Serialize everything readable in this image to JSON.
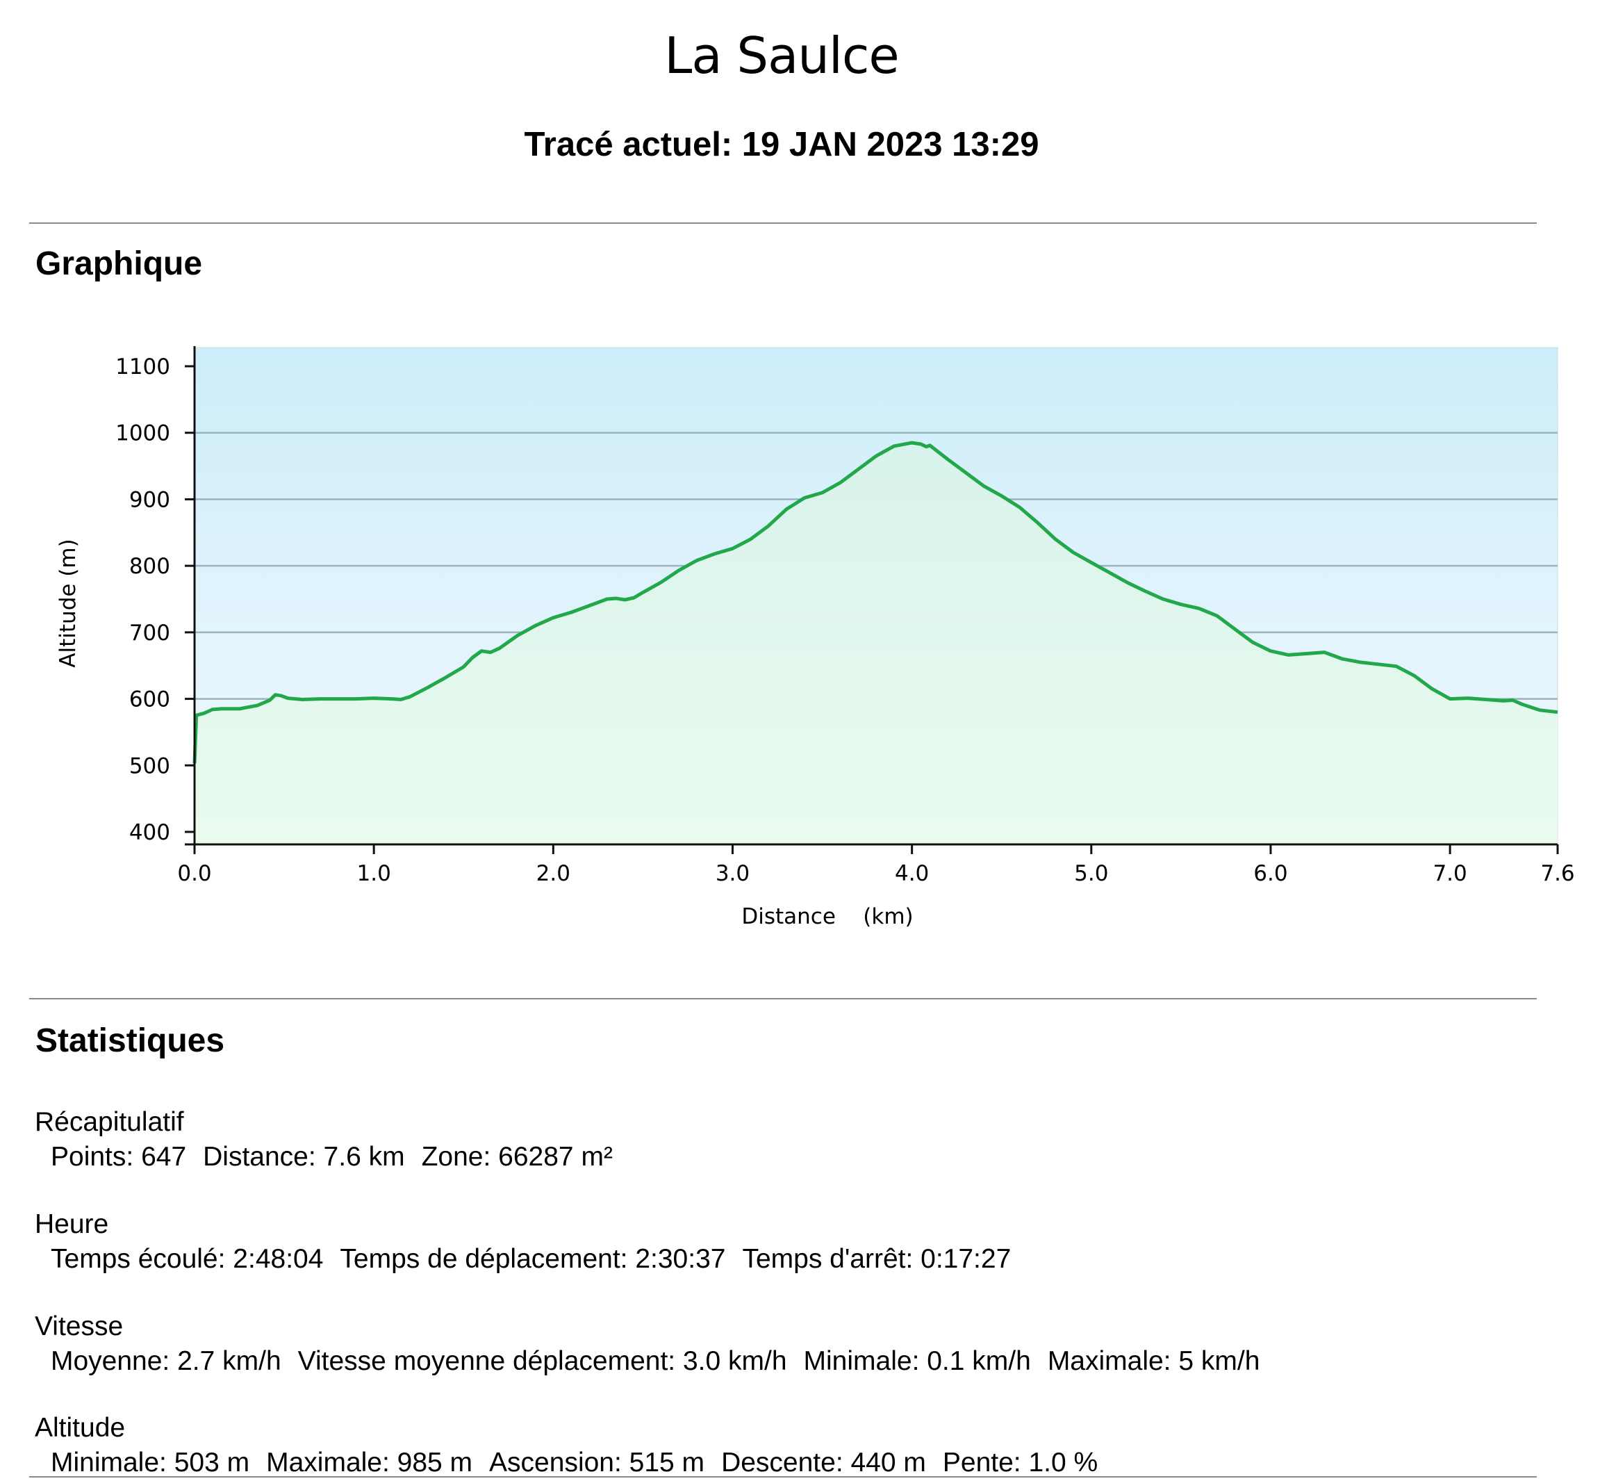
{
  "header": {
    "place": "La Saulce",
    "track": "Tracé actuel: 19 JAN 2023 13:29"
  },
  "sections": {
    "chart_title": "Graphique",
    "stats_title": "Statistiques"
  },
  "chart_data": {
    "type": "area",
    "xlabel": "Distance    (km)",
    "ylabel": "Altitude (m)",
    "xlim": [
      0,
      7.6
    ],
    "ylim": [
      400,
      1100
    ],
    "x_ticks": [
      "0.0",
      "1.0",
      "2.0",
      "3.0",
      "4.0",
      "5.0",
      "6.0",
      "7.0",
      "7.6"
    ],
    "x_tick_values": [
      0,
      1,
      2,
      3,
      4,
      5,
      6,
      7,
      7.6
    ],
    "y_ticks": [
      "1100",
      "1000",
      "900",
      "800",
      "700",
      "600",
      "500",
      "400"
    ],
    "y_tick_values": [
      1100,
      1000,
      900,
      800,
      700,
      600,
      500,
      400
    ],
    "grid": true,
    "colors": {
      "line": "#22a84a",
      "fill_top": "#d8f3ec",
      "fill_bottom": "#eafbee",
      "bg_top": "#cdeef9",
      "bg_bottom": "#f2f8ff",
      "grid": "#9bb3bd"
    },
    "series": [
      {
        "x": [
          0.0,
          0.01,
          0.02,
          0.05,
          0.1,
          0.15,
          0.25,
          0.35,
          0.42,
          0.45,
          0.48,
          0.52,
          0.6,
          0.7,
          0.8,
          0.9,
          1.0,
          1.1,
          1.15,
          1.2,
          1.3,
          1.4,
          1.5,
          1.55,
          1.6,
          1.65,
          1.7,
          1.8,
          1.9,
          2.0,
          2.1,
          2.2,
          2.3,
          2.35,
          2.4,
          2.45,
          2.5,
          2.6,
          2.7,
          2.8,
          2.9,
          3.0,
          3.1,
          3.2,
          3.3,
          3.4,
          3.5,
          3.6,
          3.7,
          3.8,
          3.9,
          4.0,
          4.05,
          4.08,
          4.1,
          4.2,
          4.3,
          4.4,
          4.5,
          4.6,
          4.7,
          4.8,
          4.9,
          5.0,
          5.1,
          5.2,
          5.3,
          5.4,
          5.5,
          5.6,
          5.7,
          5.8,
          5.9,
          6.0,
          6.1,
          6.2,
          6.3,
          6.4,
          6.5,
          6.6,
          6.7,
          6.8,
          6.9,
          7.0,
          7.1,
          7.2,
          7.3,
          7.35,
          7.4,
          7.5,
          7.6
        ],
        "y": [
          503,
          575,
          576,
          578,
          584,
          585,
          585,
          590,
          598,
          606,
          605,
          601,
          599,
          600,
          600,
          600,
          601,
          600,
          599,
          603,
          617,
          632,
          648,
          662,
          672,
          670,
          676,
          695,
          710,
          722,
          730,
          740,
          750,
          751,
          749,
          752,
          760,
          775,
          793,
          808,
          818,
          826,
          840,
          860,
          885,
          902,
          910,
          925,
          945,
          965,
          980,
          985,
          983,
          979,
          981,
          960,
          940,
          920,
          905,
          888,
          865,
          840,
          820,
          805,
          790,
          775,
          762,
          750,
          742,
          736,
          725,
          705,
          685,
          672,
          666,
          668,
          670,
          660,
          655,
          652,
          649,
          635,
          615,
          600,
          601,
          599,
          597,
          598,
          592,
          583,
          580
        ]
      }
    ]
  },
  "stats": {
    "summary": {
      "heading": "Récapitulatif",
      "items": [
        "Points: 647",
        "Distance: 7.6 km",
        "Zone: 66287 m²"
      ]
    },
    "time": {
      "heading": "Heure",
      "items": [
        "Temps écoulé: 2:48:04",
        "Temps de déplacement: 2:30:37",
        "Temps d'arrêt: 0:17:27"
      ]
    },
    "speed": {
      "heading": "Vitesse",
      "items": [
        "Moyenne: 2.7 km/h",
        "Vitesse moyenne déplacement: 3.0 km/h",
        "Minimale: 0.1 km/h",
        "Maximale: 5 km/h"
      ]
    },
    "altitude": {
      "heading": "Altitude",
      "items": [
        "Minimale: 503 m",
        "Maximale: 985 m",
        "Ascension: 515 m",
        "Descente: 440 m",
        "Pente: 1.0 %"
      ]
    }
  }
}
